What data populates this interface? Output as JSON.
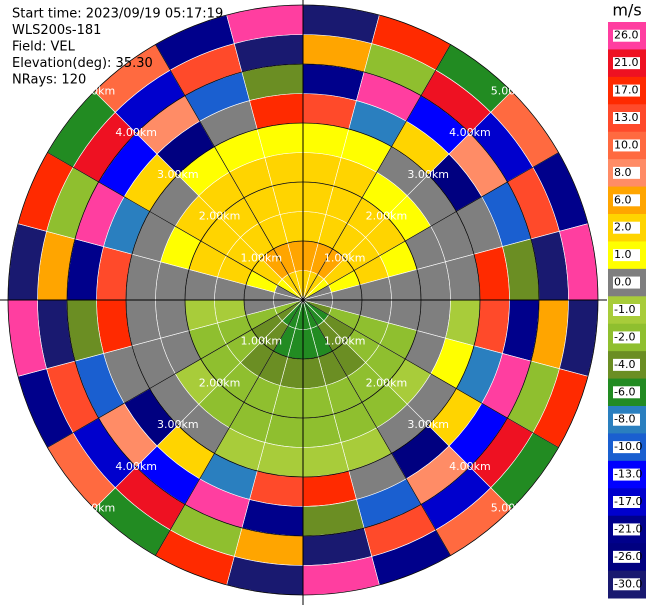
{
  "chart_data": {
    "type": "ppi",
    "header": [
      "Start time: 2023/09/19 05:17:19",
      "WLS200s-181",
      "Field: VEL",
      "Elevation(deg): 35.30",
      "NRays: 120"
    ],
    "colorbar_title": "m/s",
    "colorbar_ticks": [
      {
        "value": 26,
        "label": "26.0"
      },
      {
        "value": 21,
        "label": "21.0"
      },
      {
        "value": 17,
        "label": "17.0"
      },
      {
        "value": 13,
        "label": "13.0"
      },
      {
        "value": 10,
        "label": "10.0"
      },
      {
        "value": 8,
        "label": "8.0"
      },
      {
        "value": 6,
        "label": "6.0"
      },
      {
        "value": 2,
        "label": "2.0"
      },
      {
        "value": 1,
        "label": "1.0"
      },
      {
        "value": 0,
        "label": "0.0"
      },
      {
        "value": -1,
        "label": "-1.0"
      },
      {
        "value": -2,
        "label": "-2.0"
      },
      {
        "value": -4,
        "label": "-4.0"
      },
      {
        "value": -6,
        "label": "-6.0"
      },
      {
        "value": -8,
        "label": "-8.0"
      },
      {
        "value": -10,
        "label": "-10.0"
      },
      {
        "value": -13,
        "label": "-13.0"
      },
      {
        "value": -17,
        "label": "-17.0"
      },
      {
        "value": -21,
        "label": "-21.0"
      },
      {
        "value": -26,
        "label": "-26.0"
      },
      {
        "value": -30,
        "label": "-30.0"
      }
    ],
    "colorbar_colors": [
      "#ff3ea0",
      "#ee1122",
      "#ff2a00",
      "#ff4a2a",
      "#ff6a40",
      "#ff8c66",
      "#ffa500",
      "#ffd400",
      "#ffff00",
      "#7f7f7f",
      "#a8cc3a",
      "#8fbf2f",
      "#6b8e23",
      "#228b22",
      "#2a7fbf",
      "#1a5fd0",
      "#0000ff",
      "#0000cd",
      "#00008b",
      "#000080",
      "#191970"
    ],
    "range_rings": [
      {
        "value": 1,
        "label": "1.00km"
      },
      {
        "value": 2,
        "label": "2.00km"
      },
      {
        "value": 3,
        "label": "3.00km"
      },
      {
        "value": 4,
        "label": "4.00km"
      },
      {
        "value": 5,
        "label": "5.00km"
      }
    ],
    "gates": [
      [
        3,
        4,
        2,
        2,
        2,
        1,
        13,
        -21,
        6,
        -30
      ],
      [
        3,
        4,
        2,
        2,
        2,
        1,
        -8,
        26,
        -2,
        17
      ],
      [
        3,
        4,
        2,
        2,
        1,
        0,
        2,
        -13,
        21,
        -6
      ],
      [
        1,
        2,
        2,
        2,
        1,
        0,
        -26,
        8,
        -17,
        10
      ],
      [
        0,
        1,
        2,
        1,
        0,
        0,
        0,
        -10,
        13,
        -21
      ],
      [
        0,
        0,
        0,
        0,
        0,
        0,
        17,
        -4,
        -30,
        26
      ],
      [
        0,
        0,
        0,
        0,
        0,
        -1,
        13,
        -21,
        6,
        -30
      ],
      [
        -4,
        -2,
        -2,
        -2,
        0,
        1,
        -8,
        26,
        -2,
        17
      ],
      [
        -6,
        -4,
        -2,
        -2,
        -1,
        0,
        2,
        -13,
        21,
        -6
      ],
      [
        -6,
        -4,
        -4,
        -2,
        -2,
        0,
        -26,
        8,
        -17,
        10
      ],
      [
        -6,
        -6,
        -4,
        -2,
        -2,
        -1,
        0,
        -10,
        13,
        -21
      ],
      [
        -6,
        -6,
        -4,
        -2,
        -2,
        -1,
        17,
        -4,
        -30,
        26
      ],
      [
        -6,
        -6,
        -4,
        -2,
        -2,
        -1,
        13,
        -21,
        6,
        -30
      ],
      [
        -6,
        -6,
        -4,
        -2,
        -2,
        -1,
        -8,
        26,
        -2,
        17
      ],
      [
        -6,
        -4,
        -4,
        -2,
        -2,
        0,
        2,
        -13,
        21,
        -6
      ],
      [
        -4,
        -4,
        -2,
        -2,
        -1,
        0,
        -26,
        8,
        -17,
        10
      ],
      [
        -2,
        -2,
        -2,
        -2,
        0,
        0,
        0,
        -10,
        13,
        -21
      ],
      [
        0,
        0,
        -1,
        -1,
        0,
        0,
        17,
        -4,
        -30,
        26
      ],
      [
        0,
        0,
        0,
        0,
        0,
        0,
        13,
        -21,
        6,
        -30
      ],
      [
        0,
        1,
        2,
        2,
        1,
        0,
        -8,
        26,
        -2,
        17
      ],
      [
        1,
        2,
        2,
        2,
        2,
        0,
        2,
        -13,
        21,
        -6
      ],
      [
        3,
        4,
        2,
        2,
        2,
        1,
        -26,
        8,
        -17,
        10
      ],
      [
        3,
        4,
        2,
        2,
        2,
        1,
        0,
        -10,
        13,
        -21
      ],
      [
        3,
        4,
        2,
        2,
        2,
        1,
        17,
        -4,
        -30,
        26
      ]
    ]
  }
}
